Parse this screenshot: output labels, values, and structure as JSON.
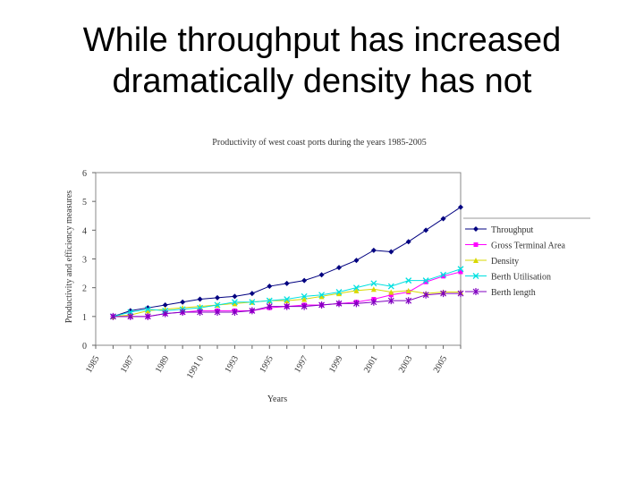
{
  "slide": {
    "title_line1": "While throughput has increased",
    "title_line2": "dramatically density has not"
  },
  "chart_data": {
    "type": "line",
    "title": "Productivity of west coast ports during the years 1985-2005",
    "xlabel": "Years",
    "ylabel": "Productivity and efficiency measures",
    "ylim": [
      0,
      6
    ],
    "yticks": [
      "0",
      "1",
      "2",
      "3",
      "4",
      "5",
      "6"
    ],
    "x": [
      1985,
      1986,
      1987,
      1988,
      1989,
      1990,
      1991,
      1992,
      1993,
      1994,
      1995,
      1996,
      1997,
      1998,
      1999,
      2000,
      2001,
      2002,
      2003,
      2004,
      2005,
      2006
    ],
    "xtick_labels": [
      "1985",
      "1987",
      "1989",
      "1991 0",
      "1993",
      "1995",
      "1997",
      "1999",
      "2001",
      "2003",
      "2005"
    ],
    "legend_position": "right",
    "grid": false,
    "series": [
      {
        "name": "Throughput",
        "color": "#000080",
        "marker": "diamond",
        "values": [
          null,
          1.0,
          1.2,
          1.3,
          1.4,
          1.5,
          1.6,
          1.65,
          1.7,
          1.8,
          2.05,
          2.15,
          2.25,
          2.45,
          2.7,
          2.95,
          3.3,
          3.25,
          3.6,
          4.0,
          4.4,
          4.8
        ]
      },
      {
        "name": "Gross Terminal Area",
        "color": "#ff00ff",
        "marker": "square",
        "values": [
          null,
          1.0,
          1.0,
          1.0,
          1.1,
          1.15,
          1.2,
          1.2,
          1.2,
          1.2,
          1.3,
          1.35,
          1.4,
          1.4,
          1.45,
          1.5,
          1.6,
          1.75,
          1.85,
          2.2,
          2.4,
          2.55
        ]
      },
      {
        "name": "Density",
        "color": "#d8d800",
        "marker": "triangle",
        "values": [
          null,
          1.0,
          1.05,
          1.2,
          1.25,
          1.3,
          1.35,
          1.4,
          1.45,
          1.5,
          1.55,
          1.55,
          1.6,
          1.7,
          1.8,
          1.9,
          1.95,
          1.85,
          1.9,
          1.8,
          1.85,
          1.85
        ]
      },
      {
        "name": "Berth Utilisation",
        "color": "#00e0e0",
        "marker": "x",
        "values": [
          null,
          1.0,
          1.15,
          1.25,
          1.2,
          1.25,
          1.3,
          1.4,
          1.5,
          1.5,
          1.55,
          1.6,
          1.7,
          1.75,
          1.85,
          2.0,
          2.15,
          2.05,
          2.25,
          2.25,
          2.45,
          2.65
        ]
      },
      {
        "name": "Berth length",
        "color": "#8000c0",
        "marker": "star",
        "values": [
          null,
          1.0,
          1.0,
          1.0,
          1.1,
          1.15,
          1.15,
          1.15,
          1.15,
          1.2,
          1.35,
          1.35,
          1.35,
          1.4,
          1.45,
          1.45,
          1.5,
          1.55,
          1.55,
          1.75,
          1.8,
          1.8
        ]
      }
    ]
  }
}
